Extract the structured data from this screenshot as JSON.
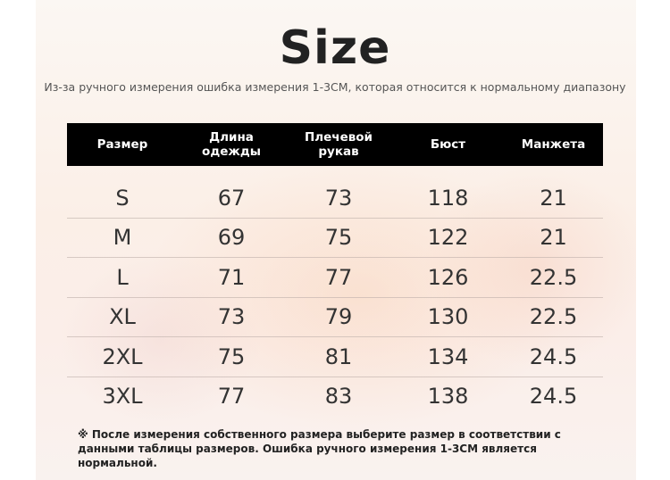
{
  "title": "Size",
  "subtitle": "Из-за ручного измерения ошибка измерения 1-3CM, которая относится к нормальному диапазону",
  "table": {
    "headers": [
      "Размер",
      "Длина одежды",
      "Плечевой рукав",
      "Бюст",
      "Манжета"
    ],
    "rows": [
      [
        "S",
        "67",
        "73",
        "118",
        "21"
      ],
      [
        "M",
        "69",
        "75",
        "122",
        "21"
      ],
      [
        "L",
        "71",
        "77",
        "126",
        "22.5"
      ],
      [
        "XL",
        "73",
        "79",
        "130",
        "22.5"
      ],
      [
        "2XL",
        "75",
        "81",
        "134",
        "24.5"
      ],
      [
        "3XL",
        "77",
        "83",
        "138",
        "24.5"
      ]
    ]
  },
  "note": "※ После измерения собственного размера выберите размер в соответствии с данными таблицы размеров. Ошибка ручного измерения 1-3CM является нормальной."
}
